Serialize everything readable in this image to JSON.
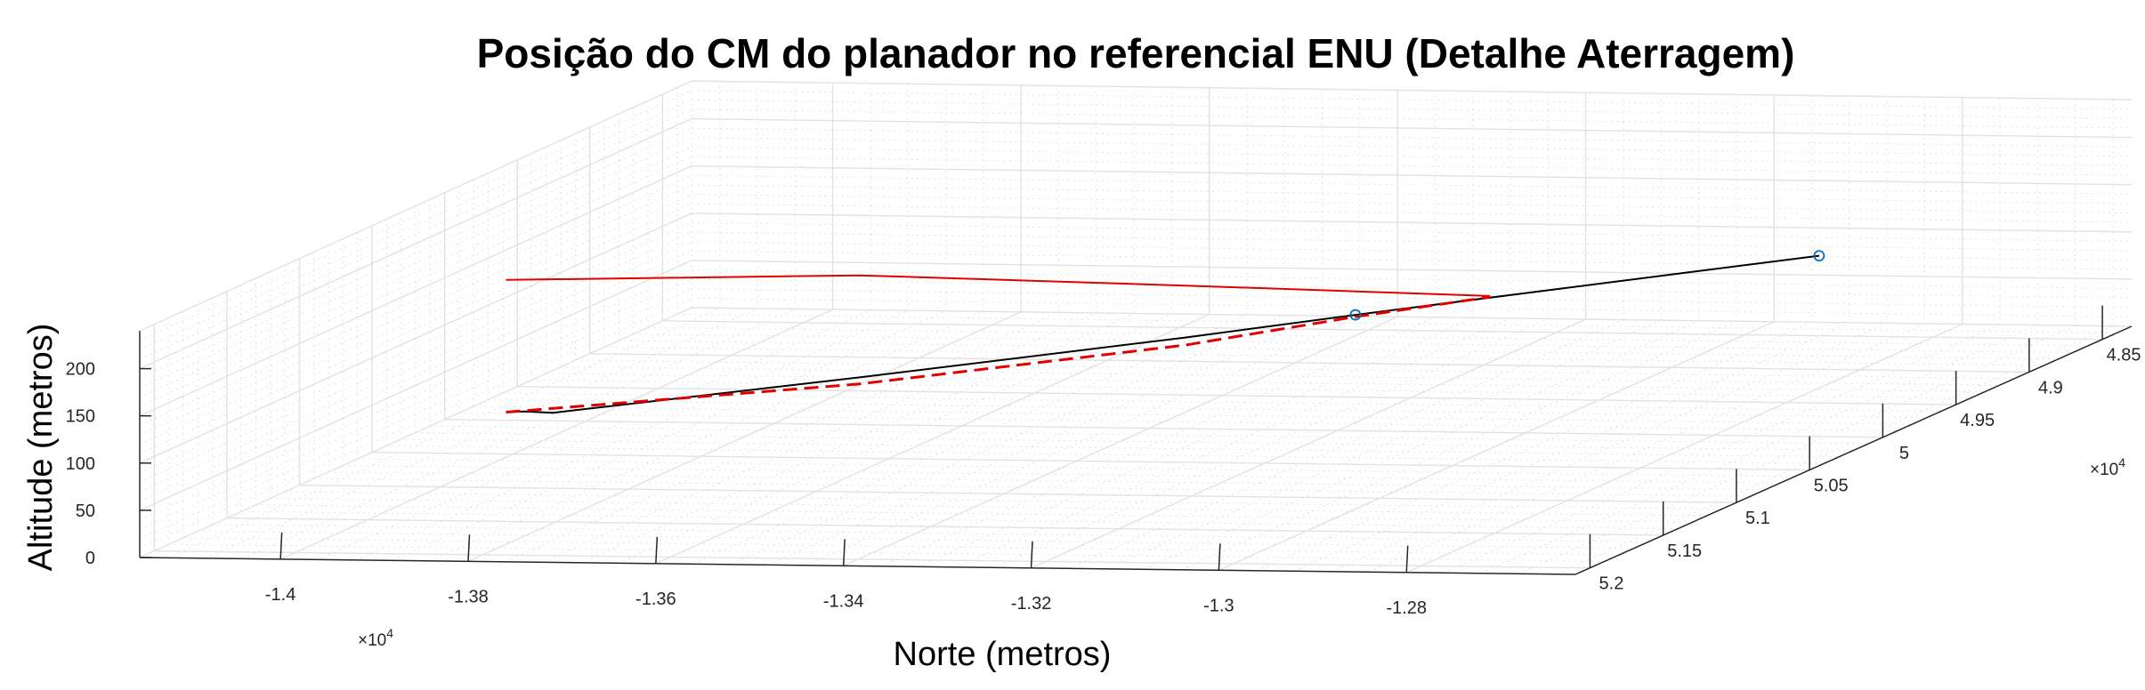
{
  "chart_data": {
    "type": "line3d",
    "title": "Posição do CM do planador no referencial ENU (Detalhe Aterragem)",
    "xlabel": "Norte (metros)",
    "ylabel": "",
    "zlabel": "Altitude (metros)",
    "x_exponent_label": "×10",
    "x_exponent_power": "4",
    "y_exponent_label": "×10",
    "y_exponent_power": "4",
    "x_ticks": [
      {
        "value": -14000,
        "label": "-1.4"
      },
      {
        "value": -13800,
        "label": "-1.38"
      },
      {
        "value": -13600,
        "label": "-1.36"
      },
      {
        "value": -13400,
        "label": "-1.34"
      },
      {
        "value": -13200,
        "label": "-1.32"
      },
      {
        "value": -13000,
        "label": "-1.3"
      },
      {
        "value": -12800,
        "label": "-1.28"
      }
    ],
    "y_ticks": [
      {
        "value": 52000,
        "label": "5.2"
      },
      {
        "value": 51500,
        "label": "5.15"
      },
      {
        "value": 51000,
        "label": "5.1"
      },
      {
        "value": 50500,
        "label": "5.05"
      },
      {
        "value": 50000,
        "label": "5"
      },
      {
        "value": 49500,
        "label": "4.95"
      },
      {
        "value": 49000,
        "label": "4.9"
      },
      {
        "value": 48500,
        "label": "4.85"
      }
    ],
    "z_ticks": [
      {
        "value": 0,
        "label": "0"
      },
      {
        "value": 50,
        "label": "50"
      },
      {
        "value": 100,
        "label": "100"
      },
      {
        "value": 150,
        "label": "150"
      },
      {
        "value": 200,
        "label": "200"
      }
    ],
    "xlim": [
      -14150,
      -12620
    ],
    "ylim": [
      48300,
      52100
    ],
    "zlim": [
      0,
      240
    ],
    "grid": "on",
    "minor_grid": "on",
    "series": [
      {
        "color": "#000000",
        "style": "solid",
        "points": [
          {
            "x": -13930,
            "y": 51000,
            "z": 80
          },
          {
            "x": -13910,
            "y": 51000,
            "z": 81
          },
          {
            "x": -13880,
            "y": 51000,
            "z": 80
          },
          {
            "x": -13600,
            "y": 50700,
            "z": 100
          },
          {
            "x": -13300,
            "y": 50400,
            "z": 125
          },
          {
            "x": -13150,
            "y": 50200,
            "z": 137
          },
          {
            "x": -13000,
            "y": 50000,
            "z": 148
          },
          {
            "x": -12750,
            "y": 49600,
            "z": 163
          }
        ]
      },
      {
        "color": "#e00000",
        "style": "dashed",
        "points": [
          {
            "x": -13930,
            "y": 51000,
            "z": 80
          },
          {
            "x": -13600,
            "y": 50700,
            "z": 93
          },
          {
            "x": -13300,
            "y": 50400,
            "z": 117
          },
          {
            "x": -13150,
            "y": 50200,
            "z": 135
          },
          {
            "x": -13030,
            "y": 50050,
            "z": 147
          }
        ]
      },
      {
        "color": "#e00000",
        "style": "solid",
        "points": [
          {
            "x": -13930,
            "y": 51000,
            "z": 220
          },
          {
            "x": -13600,
            "y": 50700,
            "z": 208
          },
          {
            "x": -13300,
            "y": 50400,
            "z": 180
          },
          {
            "x": -13030,
            "y": 50050,
            "z": 148
          }
        ]
      }
    ],
    "markers": [
      {
        "x": -13150,
        "y": 50200,
        "z": 137,
        "color": "#0072bd",
        "shape": "circle"
      },
      {
        "x": -12750,
        "y": 49600,
        "z": 163,
        "color": "#0072bd",
        "shape": "circle"
      }
    ]
  }
}
